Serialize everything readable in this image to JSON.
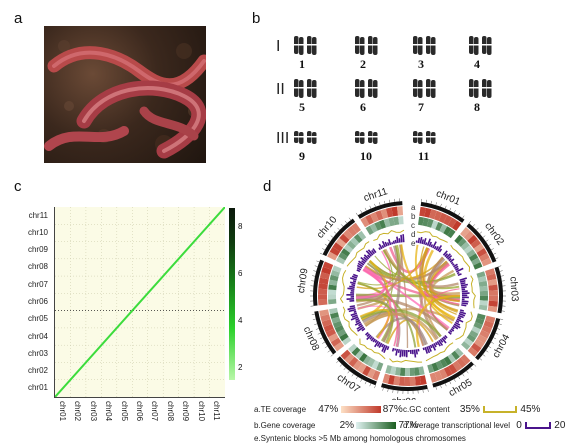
{
  "panels": {
    "a": "a",
    "b": "b",
    "c": "c",
    "d": "d"
  },
  "karyotype": {
    "rows": [
      "I",
      "II",
      "III"
    ],
    "chromosomes": [
      "1",
      "2",
      "3",
      "4",
      "5",
      "6",
      "7",
      "8",
      "9",
      "10",
      "11"
    ]
  },
  "dotplot": {
    "y_labels": [
      "chr11",
      "chr10",
      "chr09",
      "chr08",
      "chr07",
      "chr06",
      "chr05",
      "chr04",
      "chr03",
      "chr02",
      "chr01"
    ],
    "x_labels": [
      "chr01",
      "chr02",
      "chr03",
      "chr04",
      "chr05",
      "chr06",
      "chr07",
      "chr08",
      "chr09",
      "chr10",
      "chr11"
    ],
    "colorbar_ticks": [
      "8",
      "6",
      "4",
      "2"
    ],
    "colorbar_range": [
      1.5,
      8.8
    ],
    "diagonal_color": "#3cdc3c",
    "background_color": "#fbfbe6"
  },
  "circos": {
    "chromosomes": [
      "chr01",
      "chr02",
      "chr03",
      "chr04",
      "chr05",
      "chr06",
      "chr07",
      "chr08",
      "chr09",
      "chr10",
      "chr11"
    ],
    "track_letters": [
      "a",
      "b",
      "c",
      "d",
      "e"
    ],
    "legend": {
      "te": {
        "label": "a.TE coverage",
        "min": "47%",
        "max": "87%",
        "color_low": "#fde0c5",
        "color_high": "#c0392b"
      },
      "gene": {
        "label": "b.Gene coverage",
        "min": "2%",
        "max": "77%",
        "color_low": "#e0f2f1",
        "color_high": "#1b5e20"
      },
      "gc": {
        "label": "c.GC content",
        "min": "35%",
        "max": "45%",
        "color": "#c7b22a"
      },
      "expr": {
        "label": "d.Average transcriptional level",
        "min": "0",
        "max": "20",
        "color": "#4a148c"
      },
      "syntenic": {
        "label": "e.Syntenic blocks >5 Mb among homologous chromosomes"
      }
    }
  }
}
